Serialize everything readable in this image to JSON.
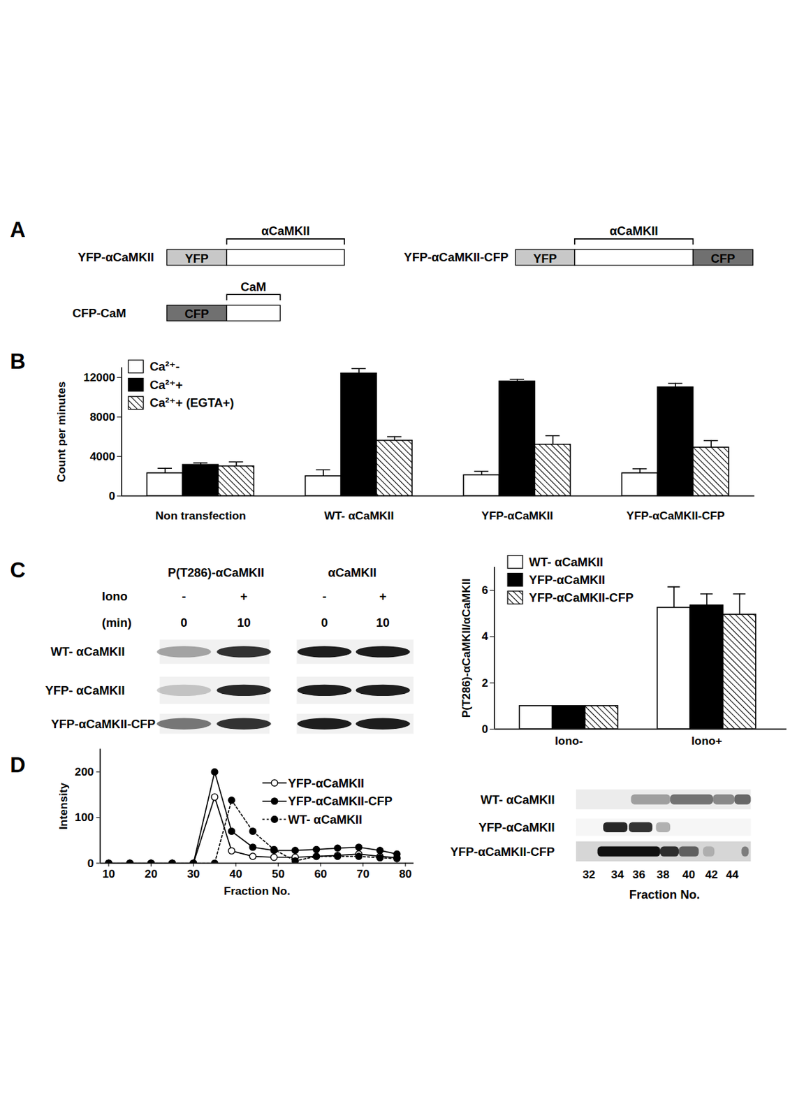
{
  "panel_labels": [
    "A",
    "B",
    "C",
    "D"
  ],
  "diagram": {
    "constructs": [
      {
        "name": "YFP-αCaMKII",
        "segments": [
          {
            "label": "YFP",
            "color": "#c8c8c8"
          },
          {
            "color": "#ffffff",
            "bracket": "αCaMKII"
          }
        ]
      },
      {
        "name": "CFP-CaM",
        "segments": [
          {
            "label": "CFP",
            "color": "#707070"
          },
          {
            "color": "#ffffff",
            "bracket": "CaM"
          }
        ]
      },
      {
        "name": "YFP-αCaMKII-CFP",
        "segments": [
          {
            "label": "YFP",
            "color": "#c8c8c8"
          },
          {
            "color": "#ffffff",
            "bracket": "αCaMKII"
          },
          {
            "label": "CFP",
            "color": "#707070"
          }
        ]
      }
    ]
  },
  "chart_data": [
    {
      "type": "bar",
      "y_label": "Count per minutes",
      "categories": [
        "Non transfection",
        "WT- αCaMKII",
        "YFP-αCaMKII",
        "YFP-αCaMKII-CFP"
      ],
      "series": [
        {
          "name": "Ca²⁺-",
          "color": "#ffffff",
          "values": [
            2300,
            2000,
            2100,
            2300
          ],
          "errors": [
            500,
            650,
            400,
            450
          ]
        },
        {
          "name": "Ca²⁺+",
          "color": "#000000",
          "values": [
            3150,
            12400,
            11600,
            11000
          ],
          "errors": [
            200,
            500,
            200,
            400
          ]
        },
        {
          "name": "Ca²⁺+ (EGTA+)",
          "color": "hatched",
          "values": [
            3000,
            5600,
            5200,
            4900
          ],
          "errors": [
            450,
            400,
            900,
            700
          ]
        }
      ],
      "ylim": [
        0,
        13000
      ],
      "yticks": [
        0,
        4000,
        8000,
        12000
      ],
      "legend": "top-left"
    },
    {
      "type": "bar",
      "y_label": "P(T286)-αCaMKII/αCaMKII",
      "categories": [
        "Iono-",
        "Iono+"
      ],
      "series": [
        {
          "name": "WT- αCaMKII",
          "color": "#ffffff",
          "values": [
            1,
            5.25
          ],
          "errors": [
            null,
            0.9
          ]
        },
        {
          "name": "YFP-αCaMKII",
          "color": "#000000",
          "values": [
            1,
            5.35
          ],
          "errors": [
            null,
            0.5
          ]
        },
        {
          "name": "YFP-αCaMKII-CFP",
          "color": "hatched",
          "values": [
            1,
            4.95
          ],
          "errors": [
            null,
            0.9
          ]
        }
      ],
      "ylim": [
        0,
        7
      ],
      "yticks": [
        0,
        2,
        4,
        6
      ],
      "legend": "top-left"
    },
    {
      "type": "line",
      "x_label": "Fraction No.",
      "y_label": "Intensity",
      "x": [
        10,
        15,
        20,
        25,
        30,
        35,
        39,
        44,
        49,
        54,
        59,
        64,
        69,
        74,
        78
      ],
      "series": [
        {
          "name": "YFP-αCaMKII",
          "color": "#000000",
          "marker": "open_circle",
          "line_style": "solid",
          "values": [
            0,
            0,
            0,
            0,
            0,
            145,
            27,
            15,
            13,
            13,
            15,
            17,
            20,
            15,
            12
          ]
        },
        {
          "name": "YFP-αCaMKII-CFP",
          "color": "#000000",
          "marker": "circle",
          "line_style": "solid",
          "values": [
            0,
            0,
            0,
            0,
            0,
            200,
            70,
            35,
            28,
            28,
            30,
            33,
            35,
            28,
            20
          ]
        },
        {
          "name": "WT- αCaMKII",
          "color": "#000000",
          "marker": "circle",
          "line_style": "dotted",
          "values": [
            0,
            0,
            0,
            0,
            0,
            0,
            138,
            70,
            30,
            5,
            15,
            15,
            15,
            12,
            10
          ]
        }
      ],
      "xlim": [
        8,
        82
      ],
      "xticks": [
        10,
        20,
        30,
        40,
        50,
        60,
        70,
        80
      ],
      "ylim": [
        0,
        250
      ],
      "yticks": [
        0,
        100,
        200
      ],
      "legend": "top-right"
    }
  ],
  "blots": {
    "C": {
      "columns": [
        "P(T286)-αCaMKII",
        "αCaMKII"
      ],
      "condition_rows": [
        {
          "label": "Iono",
          "values": [
            "-",
            "+"
          ]
        },
        {
          "label": "(min)",
          "values": [
            0,
            10
          ]
        }
      ],
      "rows": [
        "WT- αCaMKII",
        "YFP- αCaMKII",
        "YFP-αCaMKII-CFP"
      ]
    },
    "D": {
      "rows": [
        "WT- αCaMKII",
        "YFP-αCaMKII",
        "YFP-αCaMKII-CFP"
      ],
      "fractions": [
        32,
        34,
        36,
        38,
        40,
        42,
        44
      ],
      "x_label": "Fraction No."
    }
  }
}
